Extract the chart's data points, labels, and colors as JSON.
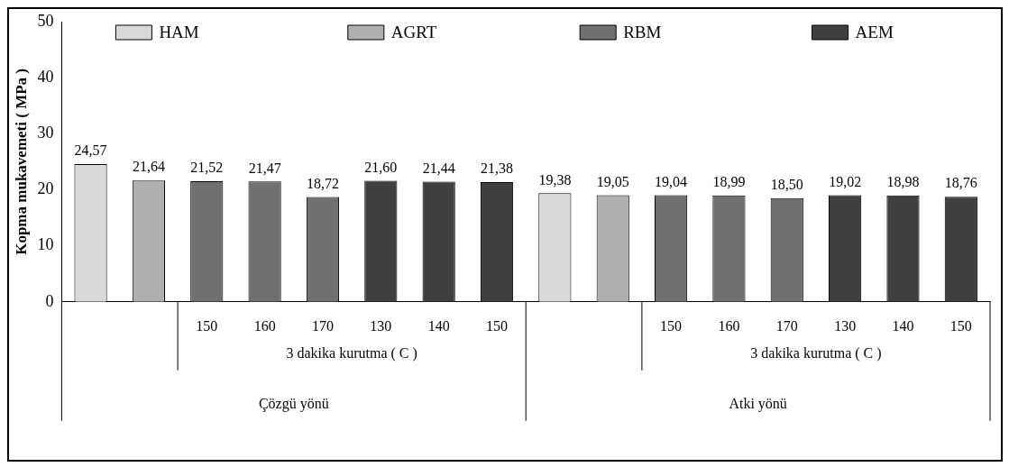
{
  "chart_data": {
    "type": "bar",
    "ylabel": "Kopma mukavemeti ( MPa )",
    "categories": [
      null,
      null,
      "150",
      "160",
      "170",
      "130",
      "140",
      "150",
      null,
      null,
      "150",
      "160",
      "170",
      "130",
      "140",
      "150"
    ],
    "series": [
      {
        "name": "HAM",
        "color": "#d9d9d9",
        "values": [
          24.57,
          null,
          null,
          null,
          null,
          null,
          null,
          null,
          19.38,
          null,
          null,
          null,
          null,
          null,
          null,
          null
        ],
        "value_labels": [
          "24,57",
          null,
          null,
          null,
          null,
          null,
          null,
          null,
          "19,38",
          null,
          null,
          null,
          null,
          null,
          null,
          null
        ]
      },
      {
        "name": "AGRT",
        "color": "#b0b0b0",
        "values": [
          null,
          21.64,
          null,
          null,
          null,
          null,
          null,
          null,
          null,
          19.05,
          null,
          null,
          null,
          null,
          null,
          null
        ],
        "value_labels": [
          null,
          "21,64",
          null,
          null,
          null,
          null,
          null,
          null,
          null,
          "19,05",
          null,
          null,
          null,
          null,
          null,
          null
        ]
      },
      {
        "name": "RBM",
        "color": "#707070",
        "values": [
          null,
          null,
          21.52,
          21.47,
          18.72,
          null,
          null,
          null,
          null,
          null,
          19.04,
          18.99,
          18.5,
          null,
          null,
          null
        ],
        "value_labels": [
          null,
          null,
          "21,52",
          "21,47",
          "18,72",
          null,
          null,
          null,
          null,
          null,
          "19,04",
          "18,99",
          "18,50",
          null,
          null,
          null
        ]
      },
      {
        "name": "AEM",
        "color": "#404040",
        "values": [
          null,
          null,
          null,
          null,
          null,
          21.6,
          21.44,
          21.38,
          null,
          null,
          null,
          null,
          null,
          19.02,
          18.98,
          18.76
        ],
        "value_labels": [
          null,
          null,
          null,
          null,
          null,
          "21,60",
          "21,44",
          "21,38",
          null,
          null,
          null,
          null,
          null,
          "19,02",
          "18,98",
          "18,76"
        ]
      }
    ],
    "ylim": [
      0,
      50
    ],
    "yticks": [
      0,
      10,
      20,
      30,
      40,
      50
    ],
    "grid": false,
    "legend": "top",
    "annotations": [
      "3 dakika kurutma ( C )",
      "3 dakika kurutma ( C )",
      "Çözgü yönü",
      "Atki yönü"
    ]
  }
}
